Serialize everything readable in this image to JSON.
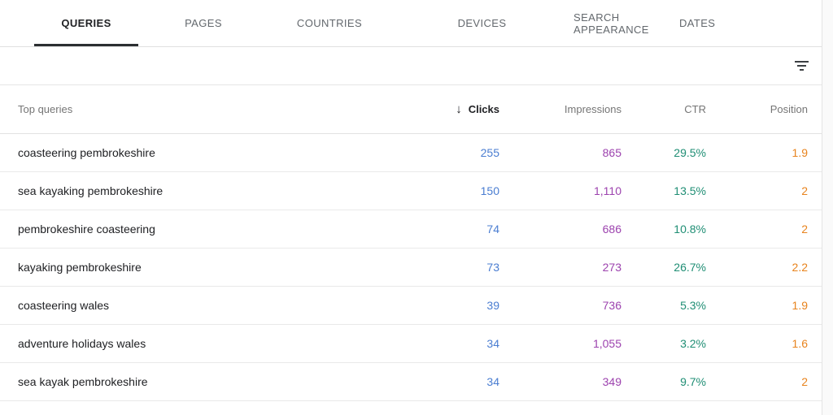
{
  "tabs": [
    {
      "label": "QUERIES",
      "active": true
    },
    {
      "label": "PAGES",
      "active": false
    },
    {
      "label": "COUNTRIES",
      "active": false
    },
    {
      "label": "DEVICES",
      "active": false
    },
    {
      "label": "SEARCH APPEARANCE",
      "active": false
    },
    {
      "label": "DATES",
      "active": false
    }
  ],
  "toolbar": {
    "filter_icon": "filter-list"
  },
  "table": {
    "query_header": "Top queries",
    "columns": [
      {
        "label": "Clicks",
        "sorted": "descending",
        "sort_icon": "↓"
      },
      {
        "label": "Impressions"
      },
      {
        "label": "CTR"
      },
      {
        "label": "Position"
      }
    ],
    "colors": {
      "clicks": "#4a7dd1",
      "impressions": "#9c42ae",
      "ctr": "#1f8e74",
      "position": "#e8831d"
    },
    "rows": [
      {
        "query": "coasteering pembrokeshire",
        "clicks": "255",
        "impressions": "865",
        "ctr": "29.5%",
        "position": "1.9"
      },
      {
        "query": "sea kayaking pembrokeshire",
        "clicks": "150",
        "impressions": "1,110",
        "ctr": "13.5%",
        "position": "2"
      },
      {
        "query": "pembrokeshire coasteering",
        "clicks": "74",
        "impressions": "686",
        "ctr": "10.8%",
        "position": "2"
      },
      {
        "query": "kayaking pembrokeshire",
        "clicks": "73",
        "impressions": "273",
        "ctr": "26.7%",
        "position": "2.2"
      },
      {
        "query": "coasteering wales",
        "clicks": "39",
        "impressions": "736",
        "ctr": "5.3%",
        "position": "1.9"
      },
      {
        "query": "adventure holidays wales",
        "clicks": "34",
        "impressions": "1,055",
        "ctr": "3.2%",
        "position": "1.6"
      },
      {
        "query": "sea kayak pembrokeshire",
        "clicks": "34",
        "impressions": "349",
        "ctr": "9.7%",
        "position": "2"
      }
    ]
  }
}
